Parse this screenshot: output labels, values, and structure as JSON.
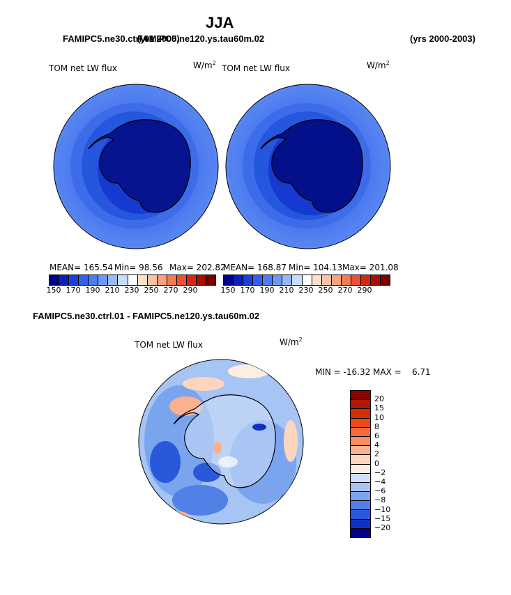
{
  "header": {
    "season": "JJA",
    "left_case": "FAMIPC5.ne30.ctrl.01",
    "overlap_case": "FAMIPC5.ne120.ys.tau60m.02",
    "years_left": "(yrs 2000)",
    "years_right": "(yrs 2000-2003)"
  },
  "panels": [
    {
      "variable": "TOM net LW flux",
      "units_base": "W/m",
      "units_exp": "2",
      "stats": {
        "mean": "MEAN= 165.54",
        "min": "Min= 98.56",
        "max": "Max= 202.82"
      }
    },
    {
      "variable": "TOM net LW flux",
      "units_base": "W/m",
      "units_exp": "2",
      "stats": {
        "mean": "MEAN= 168.87",
        "min": "Min= 104.13",
        "max": "Max= 201.08"
      }
    }
  ],
  "abs_colorbar": {
    "tick_labels": [
      "150",
      "170",
      "190",
      "210",
      "230",
      "250",
      "270",
      "290"
    ],
    "colors": [
      "#00008b",
      "#0a1fb8",
      "#1840dc",
      "#2e5ff0",
      "#4a7cf4",
      "#6e98f6",
      "#9ab8f8",
      "#c8dcfb",
      "#ffffff",
      "#fde0cc",
      "#fbc2a4",
      "#f9a07c",
      "#f57a52",
      "#ef5030",
      "#d62810",
      "#a51000",
      "#7a0000"
    ]
  },
  "diff_section": {
    "title": "FAMIPC5.ne30.ctrl.01 - FAMIPC5.ne120.ys.tau60m.02",
    "variable": "TOM net LW flux",
    "units_base": "W/m",
    "units_exp": "2",
    "minmax": "MIN = -16.32 MAX =    6.71",
    "levels": [
      "20",
      "15",
      "10",
      "8",
      "6",
      "4",
      "2",
      "0",
      "−2",
      "−4",
      "−6",
      "−8",
      "−10",
      "−15",
      "−20"
    ],
    "colors": [
      "#8b0000",
      "#b01800",
      "#d23000",
      "#ea4a18",
      "#f66a3a",
      "#f98c62",
      "#fbb08e",
      "#fdd5be",
      "#fdeee2",
      "#cfe0f8",
      "#a6c4f4",
      "#7ba4ee",
      "#5180e6",
      "#2a58da",
      "#1030c4",
      "#00008b"
    ]
  }
}
